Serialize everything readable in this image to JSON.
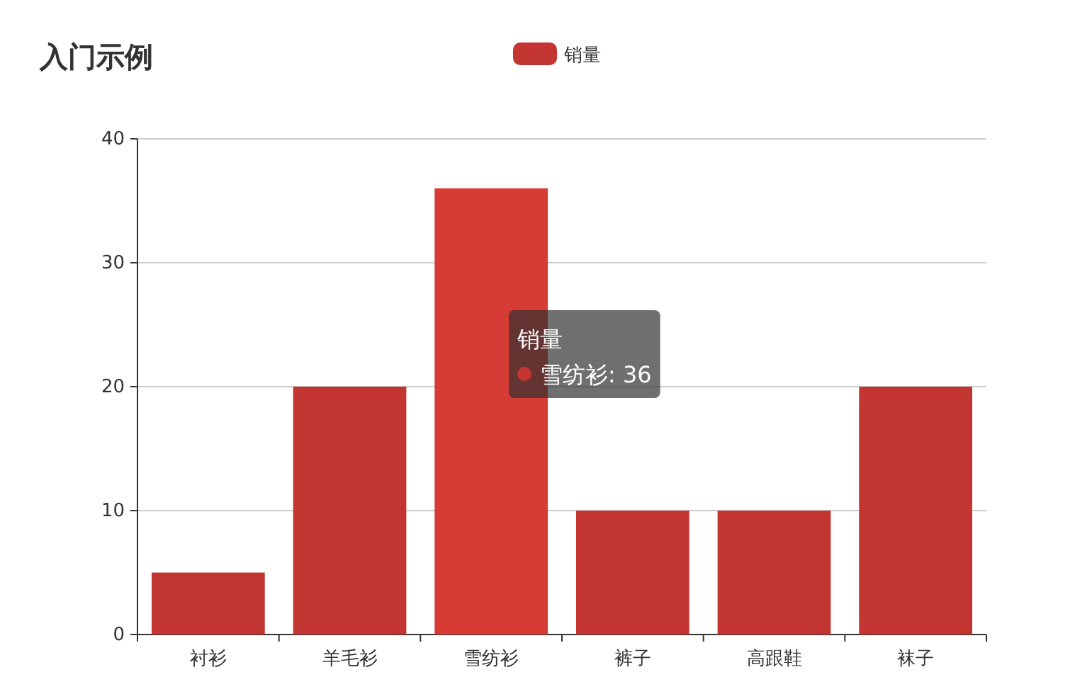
{
  "chart_data": {
    "type": "bar",
    "title": "入门示例",
    "categories": [
      "衬衫",
      "羊毛衫",
      "雪纺衫",
      "裤子",
      "高跟鞋",
      "袜子"
    ],
    "series": [
      {
        "name": "销量",
        "color": "#c23531",
        "colors": [
          "#c23531",
          "#c23531",
          "#d73b35",
          "#c23531",
          "#c23531",
          "#c23531"
        ],
        "values": [
          5,
          20,
          36,
          10,
          10,
          20
        ]
      }
    ],
    "ylim": [
      0,
      40
    ],
    "yticks": [
      0,
      10,
      20,
      30,
      40
    ],
    "grid": "y",
    "legend": "top",
    "annotations": [
      "销量",
      "雪纺衫: 36"
    ]
  }
}
